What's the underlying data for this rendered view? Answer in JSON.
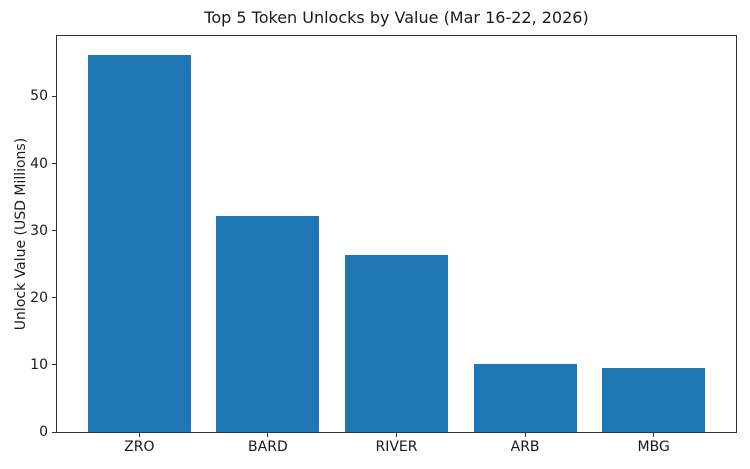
{
  "chart_data": {
    "type": "bar",
    "title": "Top 5 Token Unlocks by Value (Mar 16-22, 2026)",
    "categories": [
      "ZRO",
      "BARD",
      "RIVER",
      "ARB",
      "MBG"
    ],
    "values": [
      56.2,
      32.2,
      26.4,
      10.2,
      9.5
    ],
    "xlabel": "",
    "ylabel": "Unlock Value (USD Millions)",
    "ylim": [
      0,
      59
    ],
    "yticks": [
      0,
      10,
      20,
      30,
      40,
      50
    ],
    "grid": false,
    "legend": "none"
  },
  "colors": {
    "bar": "#1f77b4",
    "text": "#1a1a1a",
    "spine": "#333333",
    "background": "#ffffff"
  }
}
